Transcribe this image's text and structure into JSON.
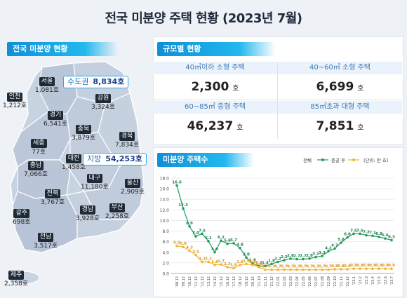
{
  "title": "전국 미분양 주택 현황  (2023년 7월)",
  "map": {
    "header": "전국 미분양 현황",
    "regions": [
      {
        "name": "서울",
        "value": "1,081호"
      },
      {
        "name": "인천",
        "value": "1,212호"
      },
      {
        "name": "경기",
        "value": "6,541호"
      },
      {
        "name": "강원",
        "value": "3,324호"
      },
      {
        "name": "충북",
        "value": "3,879호"
      },
      {
        "name": "경북",
        "value": "7,834호"
      },
      {
        "name": "세종",
        "value": "77호"
      },
      {
        "name": "대전",
        "value": "1,458호"
      },
      {
        "name": "충남",
        "value": "7,066호"
      },
      {
        "name": "대구",
        "value": "11,180호"
      },
      {
        "name": "울산",
        "value": "2,909호"
      },
      {
        "name": "전북",
        "value": "3,767호"
      },
      {
        "name": "경남",
        "value": "3,928호"
      },
      {
        "name": "부산",
        "value": "2,258호"
      },
      {
        "name": "광주",
        "value": "698호"
      },
      {
        "name": "전남",
        "value": "3,517호"
      },
      {
        "name": "제주",
        "value": "2,358호"
      }
    ],
    "capital": {
      "label": "수도권",
      "value": "8,834호"
    },
    "local": {
      "label": "지방",
      "value": "54,253호"
    }
  },
  "size": {
    "header": "규모별 현황",
    "cells": [
      {
        "label": "40㎡이하 소형 주택",
        "value": "2,300",
        "unit": "호"
      },
      {
        "label": "40~60㎡ 소형 주택",
        "value": "6,699",
        "unit": "호"
      },
      {
        "label": "60~85㎡ 중형 주택",
        "value": "46,237",
        "unit": "호"
      },
      {
        "label": "85㎡초과 대형 주택",
        "value": "7,851",
        "unit": "호"
      }
    ]
  },
  "chart_header": "미분양 주택수",
  "chart_data": {
    "type": "line",
    "legend": [
      "전체",
      "준공 후",
      "(단위: 만 호)"
    ],
    "colors": {
      "total": "#1e9e5a",
      "completed": "#f2b430"
    },
    "ylim": [
      0,
      18
    ],
    "yticks": [
      "0.0",
      "2.0",
      "4.0",
      "6.0",
      "8.0",
      "10.0",
      "12.0",
      "14.0",
      "16.0",
      "18.0"
    ],
    "xticks": [
      "'08.12",
      "'09.12",
      "'10.12",
      "'11.12",
      "'12.12",
      "'13.12",
      "'14.12",
      "'15.12",
      "'16.12",
      "'17.12",
      "'18.12",
      "'19.12",
      "'20.12",
      "'21.10",
      "'21.11",
      "'21.12",
      "'22.01",
      "'22.02",
      "'22.03",
      "'22.04",
      "'22.05",
      "'22.06",
      "'22.07",
      "'22.08",
      "'22.09",
      "'22.10",
      "'22.11",
      "'22.12",
      "'23.1",
      "'23.2",
      "'23.3",
      "'23.4",
      "'23.5",
      "'23.6",
      "'23.7"
    ],
    "series": [
      {
        "name": "전체",
        "values": [
          16.6,
          12.3,
          8.9,
          7.0,
          7.5,
          6.1,
          4.0,
          6.2,
          5.6,
          5.7,
          4.8,
          3.0,
          1.9,
          1.4,
          1.4,
          1.8,
          2.2,
          2.5,
          2.8,
          2.7,
          2.7,
          2.8,
          3.1,
          3.3,
          4.2,
          4.7,
          5.8,
          6.8,
          7.5,
          7.5,
          7.2,
          7.1,
          6.9,
          6.6,
          6.3
        ]
      },
      {
        "name": "준공 후",
        "values": [
          5.2,
          5.0,
          4.3,
          3.5,
          2.2,
          2.2,
          1.6,
          1.7,
          1.2,
          1.0,
          1.6,
          1.8,
          1.6,
          1.2,
          0.7,
          0.7,
          0.7,
          0.7,
          0.7,
          0.7,
          0.7,
          0.7,
          0.7,
          0.7,
          0.7,
          0.8,
          0.8,
          0.8,
          0.9,
          0.9,
          0.9,
          0.9,
          0.9,
          0.9,
          0.9
        ]
      }
    ],
    "total_labels": [
      "16.6",
      "12.3",
      "8.9",
      "7.0",
      "7.5",
      "6.1",
      "4.0",
      "6.2",
      "5.6",
      "5.7",
      "4.8",
      "3.0",
      "1.9",
      "1.4",
      "1.4",
      "1.8",
      "2.2",
      "2.5",
      "2.8",
      "2.7",
      "2.7",
      "2.8",
      "3.1",
      "3.3",
      "4.2",
      "4.7",
      "5.8",
      "6.8",
      "7.5",
      "7.5",
      "7.2",
      "7.1",
      "6.9",
      "6.6",
      "6.3"
    ],
    "completed_labels": [
      "5.2",
      "5.0",
      "4.3",
      "3.5",
      "2.2",
      "2.2",
      "1.6",
      "1.7",
      "1.2",
      "1.0",
      "1.6",
      "1.8",
      "1.6",
      "1.2",
      "0.7",
      "0.7",
      "0.7",
      "0.7",
      "0.7",
      "0.7",
      "0.7",
      "0.7",
      "0.7",
      "0.7",
      "0.7",
      "0.8",
      "0.8",
      "0.8",
      "0.9",
      "0.9",
      "0.9",
      "0.9",
      "0.9",
      "0.9",
      "0.9"
    ]
  }
}
